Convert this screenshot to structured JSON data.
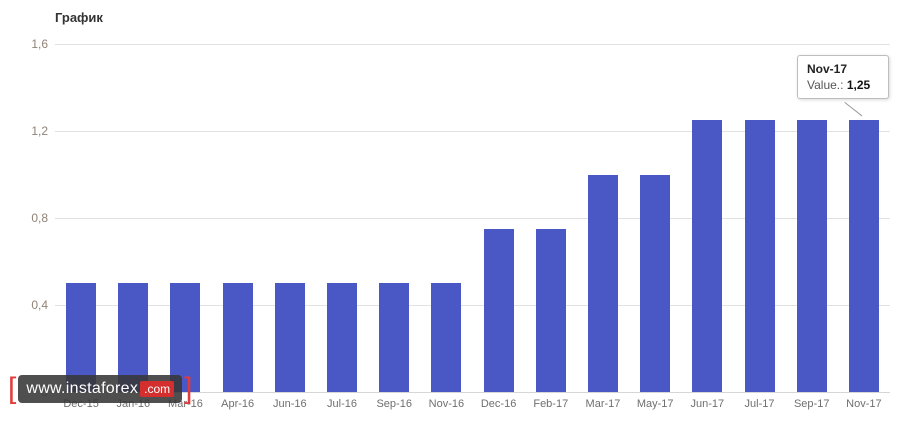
{
  "title": "График",
  "tooltip": {
    "label": "Nov-17",
    "value_prefix": "Value.:",
    "value": "1,25"
  },
  "watermark": {
    "left_bracket": "[",
    "domain": "www.instaforex",
    "tld": ".com",
    "right_bracket": "]"
  },
  "colors": {
    "bar": "#4a58c6",
    "gridline": "#e2e2e2",
    "accent_red": "#d32f2f"
  },
  "chart_data": {
    "type": "bar",
    "title": "График",
    "categories": [
      "Dec-15",
      "Jan-16",
      "Mar-16",
      "Apr-16",
      "Jun-16",
      "Jul-16",
      "Sep-16",
      "Nov-16",
      "Dec-16",
      "Feb-17",
      "Mar-17",
      "May-17",
      "Jun-17",
      "Jul-17",
      "Sep-17",
      "Nov-17"
    ],
    "values": [
      0.5,
      0.5,
      0.5,
      0.5,
      0.5,
      0.5,
      0.5,
      0.5,
      0.75,
      0.75,
      1.0,
      1.0,
      1.25,
      1.25,
      1.25,
      1.25
    ],
    "xlabel": "",
    "ylabel": "",
    "ylim": [
      0,
      1.6
    ],
    "yticks": [
      {
        "value": 1.6,
        "label": "1,6"
      },
      {
        "value": 1.2,
        "label": "1,2"
      },
      {
        "value": 0.8,
        "label": "0,8"
      },
      {
        "value": 0.4,
        "label": "0,4"
      },
      {
        "value": 0.0,
        "label": "0"
      }
    ],
    "grid": true,
    "legend": false,
    "highlighted_category": "Nov-17"
  }
}
